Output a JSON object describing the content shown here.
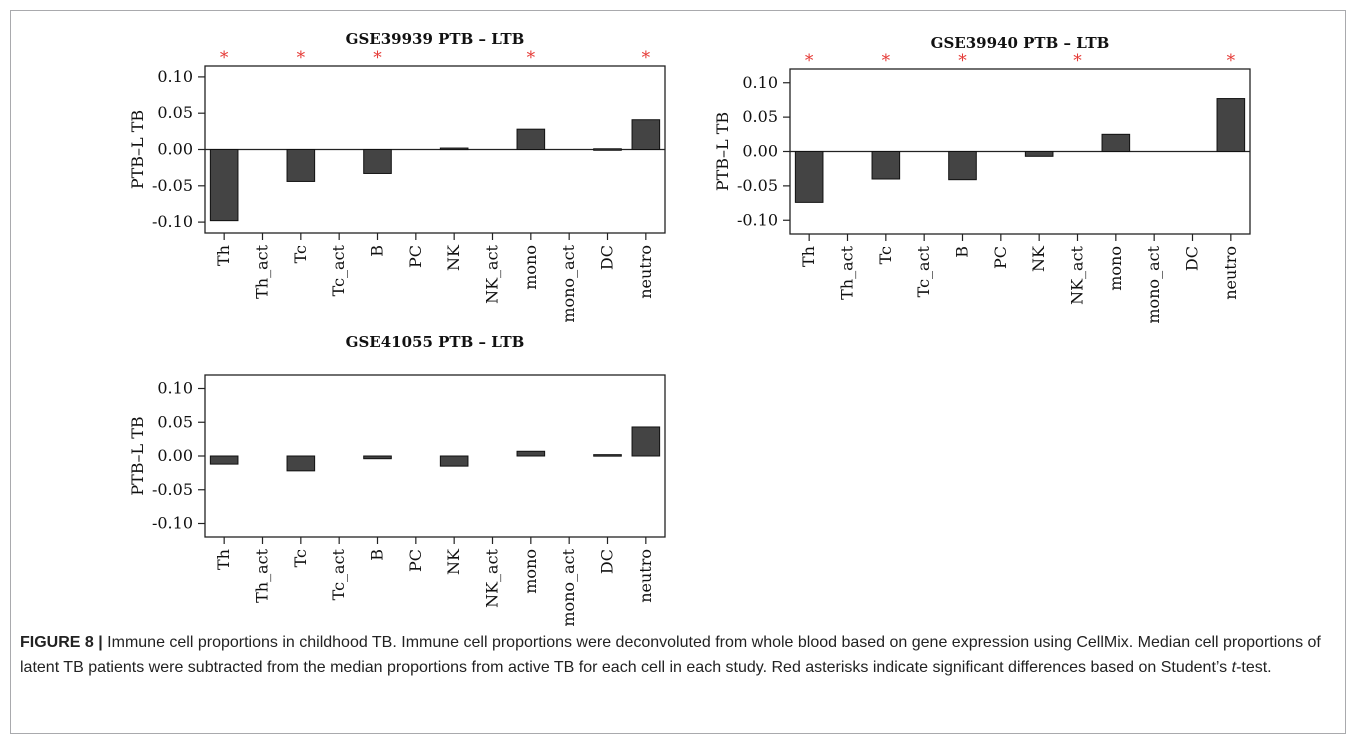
{
  "chart_data": [
    {
      "type": "bar",
      "title": "GSE39939 PTB – LTB",
      "ylabel": "PTB–L TB",
      "categories": [
        "Th",
        "Th_act",
        "Tc",
        "Tc_act",
        "B",
        "PC",
        "NK",
        "NK_act",
        "mono",
        "mono_act",
        "DC",
        "neutro"
      ],
      "values": [
        -0.098,
        0,
        -0.044,
        0,
        -0.033,
        0,
        0.002,
        0,
        0.028,
        0,
        0.001,
        0.041
      ],
      "significant": [
        "Th",
        "Tc",
        "B",
        "mono",
        "neutro"
      ],
      "yticks": [
        0.1,
        0.05,
        0.0,
        -0.05,
        -0.1
      ],
      "ytick_labels": [
        "0.10",
        "0.05",
        "0.00",
        "-0.05",
        "-0.10"
      ],
      "ylim": [
        -0.115,
        0.115
      ],
      "zero_line": true,
      "bar_color": "#444444",
      "asterisk_color": "#e53935"
    },
    {
      "type": "bar",
      "title": "GSE39940 PTB – LTB",
      "ylabel": "PTB–L TB",
      "categories": [
        "Th",
        "Th_act",
        "Tc",
        "Tc_act",
        "B",
        "PC",
        "NK",
        "NK_act",
        "mono",
        "mono_act",
        "DC",
        "neutro"
      ],
      "values": [
        -0.074,
        0,
        -0.04,
        0,
        -0.041,
        0,
        -0.007,
        0,
        0.025,
        0,
        0,
        0.077
      ],
      "significant": [
        "Th",
        "Tc",
        "B",
        "NK_act",
        "neutro"
      ],
      "yticks": [
        0.1,
        0.05,
        0.0,
        -0.05,
        -0.1
      ],
      "ytick_labels": [
        "0.10",
        "0.05",
        "0.00",
        "-0.05",
        "-0.10"
      ],
      "ylim": [
        -0.12,
        0.12
      ],
      "zero_line": true,
      "bar_color": "#444444",
      "asterisk_color": "#e53935"
    },
    {
      "type": "bar",
      "title": "GSE41055 PTB – LTB",
      "ylabel": "PTB–L TB",
      "categories": [
        "Th",
        "Th_act",
        "Tc",
        "Tc_act",
        "B",
        "PC",
        "NK",
        "NK_act",
        "mono",
        "mono_act",
        "DC",
        "neutro"
      ],
      "values": [
        -0.012,
        0,
        -0.022,
        0,
        -0.004,
        0,
        -0.015,
        0,
        0.007,
        0,
        0.002,
        0.043
      ],
      "significant": [],
      "yticks": [
        0.1,
        0.05,
        0.0,
        -0.05,
        -0.1
      ],
      "ytick_labels": [
        "0.10",
        "0.05",
        "0.00",
        "-0.05",
        "-0.10"
      ],
      "ylim": [
        -0.12,
        0.12
      ],
      "zero_line": false,
      "bar_color": "#444444",
      "asterisk_color": "#e53935"
    }
  ],
  "caption": {
    "figure_label": "FIGURE 8 |",
    "text_before_italic": " Immune cell proportions in childhood TB. Immune cell proportions were deconvoluted from whole blood based on gene expression using CellMix. Median cell proportions of latent TB patients were subtracted from the median proportions from active TB for each cell in each study. Red asterisks indicate significant differences based on Student’s ",
    "italic": "t",
    "text_after_italic": "-test."
  }
}
